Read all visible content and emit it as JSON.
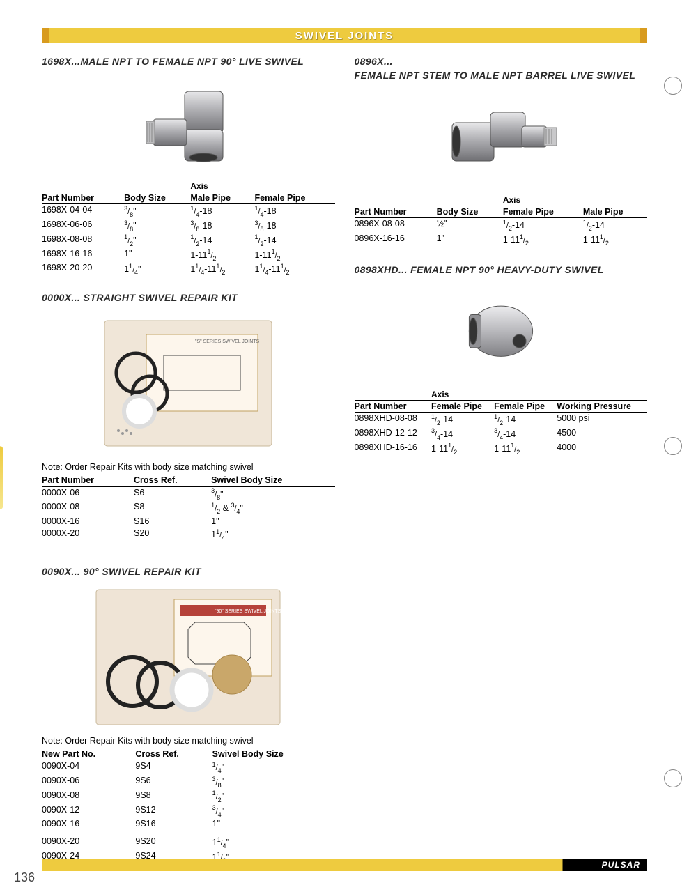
{
  "header": {
    "title": "SWIVEL JOINTS"
  },
  "sideTab": "Swivel\nJoints",
  "pageNumber": "136",
  "brand": "PULSAR",
  "colors": {
    "accent": "#eecb3f",
    "accent_dark": "#d89b1f",
    "text": "#000000"
  },
  "sections": {
    "s1698X": {
      "title": "1698X...MALE NPT TO FEMALE NPT 90° LIVE SWIVEL",
      "axisLabel": "Axis",
      "columns": [
        "Part Number",
        "Body Size",
        "Male Pipe",
        "Female Pipe"
      ],
      "rows": [
        [
          "1698X-04-04",
          {
            "frac": [
              "3",
              "8",
              "\""
            ]
          },
          {
            "mix": [
              {
                "frac": [
                  "1",
                  "4"
                ]
              },
              "-18"
            ]
          },
          {
            "mix": [
              {
                "frac": [
                  "1",
                  "4"
                ]
              },
              "-18"
            ]
          }
        ],
        [
          "1698X-06-06",
          {
            "frac": [
              "3",
              "8",
              "\""
            ]
          },
          {
            "mix": [
              {
                "frac": [
                  "3",
                  "8"
                ]
              },
              "-18"
            ]
          },
          {
            "mix": [
              {
                "frac": [
                  "3",
                  "8"
                ]
              },
              "-18"
            ]
          }
        ],
        [
          "1698X-08-08",
          {
            "frac": [
              "1",
              "2",
              "\""
            ]
          },
          {
            "mix": [
              {
                "frac": [
                  "1",
                  "2"
                ]
              },
              "-14"
            ]
          },
          {
            "mix": [
              {
                "frac": [
                  "1",
                  "2"
                ]
              },
              "-14"
            ]
          }
        ],
        [
          "1698X-16-16",
          "1\"",
          {
            "mix": [
              "1-11",
              {
                "frac": [
                  "1",
                  "2"
                ]
              }
            ]
          },
          {
            "mix": [
              "1-11",
              {
                "frac": [
                  "1",
                  "2"
                ]
              }
            ]
          }
        ],
        [
          "1698X-20-20",
          {
            "mix": [
              "1",
              {
                "frac": [
                  "1",
                  "4"
                ]
              },
              "\""
            ]
          },
          {
            "mix": [
              "1",
              {
                "frac": [
                  "1",
                  "4"
                ]
              },
              "-11",
              {
                "frac": [
                  "1",
                  "2"
                ]
              }
            ]
          },
          {
            "mix": [
              "1",
              {
                "frac": [
                  "1",
                  "4"
                ]
              },
              "-11",
              {
                "frac": [
                  "1",
                  "2"
                ]
              }
            ]
          }
        ]
      ]
    },
    "s0000X": {
      "title": "0000X... STRAIGHT SWIVEL REPAIR KIT",
      "note": "Note: Order Repair Kits with body size matching swivel",
      "columns": [
        "Part Number",
        "Cross Ref.",
        "Swivel Body Size"
      ],
      "rows": [
        [
          "0000X-06",
          "S6",
          {
            "frac": [
              "3",
              "8",
              "\""
            ]
          }
        ],
        [
          "0000X-08",
          "S8",
          {
            "mix": [
              {
                "frac": [
                  "1",
                  "2"
                ]
              },
              " & ",
              {
                "frac": [
                  "3",
                  "4"
                ]
              },
              "\""
            ]
          }
        ],
        [
          "0000X-16",
          "S16",
          "1\""
        ],
        [
          "0000X-20",
          "S20",
          {
            "mix": [
              "1",
              {
                "frac": [
                  "1",
                  "4"
                ]
              },
              "\""
            ]
          }
        ]
      ]
    },
    "s0090X": {
      "title": "0090X... 90° SWIVEL REPAIR KIT",
      "note": "Note: Order Repair Kits with body size matching swivel",
      "columns": [
        "New Part No.",
        "Cross Ref.",
        "Swivel Body Size"
      ],
      "rows": [
        [
          "0090X-04",
          "9S4",
          {
            "frac": [
              "1",
              "4",
              "\""
            ]
          }
        ],
        [
          "0090X-06",
          "9S6",
          {
            "frac": [
              "3",
              "8",
              "\""
            ]
          }
        ],
        [
          "0090X-08",
          "9S8",
          {
            "frac": [
              "1",
              "2",
              "\""
            ]
          }
        ],
        [
          "0090X-12",
          "9S12",
          {
            "frac": [
              "3",
              "4",
              "\""
            ]
          }
        ],
        [
          "0090X-16",
          "9S16",
          "1\""
        ]
      ],
      "rows2": [
        [
          "0090X-20",
          "9S20",
          {
            "mix": [
              "1",
              {
                "frac": [
                  "1",
                  "4"
                ]
              },
              "\""
            ]
          }
        ],
        [
          "0090X-24",
          "9S24",
          {
            "mix": [
              "1",
              {
                "frac": [
                  "1",
                  "2"
                ]
              },
              "\""
            ]
          }
        ]
      ]
    },
    "s0896X": {
      "titleCode": "0896X...",
      "title": "FEMALE NPT STEM TO MALE NPT BARREL LIVE SWIVEL",
      "axisLabel": "Axis",
      "columns": [
        "Part Number",
        "Body Size",
        "Female Pipe",
        "Male Pipe"
      ],
      "rows": [
        [
          "0896X-08-08",
          "½\"",
          {
            "mix": [
              {
                "frac": [
                  "1",
                  "2"
                ]
              },
              "-14"
            ]
          },
          {
            "mix": [
              {
                "frac": [
                  "1",
                  "2"
                ]
              },
              "-14"
            ]
          }
        ],
        [
          "0896X-16-16",
          "1\"",
          {
            "mix": [
              "1-11",
              {
                "frac": [
                  "1",
                  "2"
                ]
              }
            ]
          },
          {
            "mix": [
              "1-11",
              {
                "frac": [
                  "1",
                  "2"
                ]
              }
            ]
          }
        ]
      ]
    },
    "s0898XHD": {
      "title": "0898XHD... FEMALE NPT 90° HEAVY-DUTY SWIVEL",
      "axisLabel": "Axis",
      "columns": [
        "Part Number",
        "Female Pipe",
        "Female Pipe",
        "Working Pressure"
      ],
      "rows": [
        [
          "0898XHD-08-08",
          {
            "mix": [
              {
                "frac": [
                  "1",
                  "2"
                ]
              },
              "-14"
            ]
          },
          {
            "mix": [
              {
                "frac": [
                  "1",
                  "2"
                ]
              },
              "-14"
            ]
          },
          "5000 psi"
        ],
        [
          "0898XHD-12-12",
          {
            "mix": [
              {
                "frac": [
                  "3",
                  "4"
                ]
              },
              "-14"
            ]
          },
          {
            "mix": [
              {
                "frac": [
                  "3",
                  "4"
                ]
              },
              "-14"
            ]
          },
          "4500"
        ],
        [
          "0898XHD-16-16",
          {
            "mix": [
              "1-11",
              {
                "frac": [
                  "1",
                  "2"
                ]
              }
            ]
          },
          {
            "mix": [
              "1-11",
              {
                "frac": [
                  "1",
                  "2"
                ]
              }
            ]
          },
          "4000"
        ]
      ]
    }
  }
}
